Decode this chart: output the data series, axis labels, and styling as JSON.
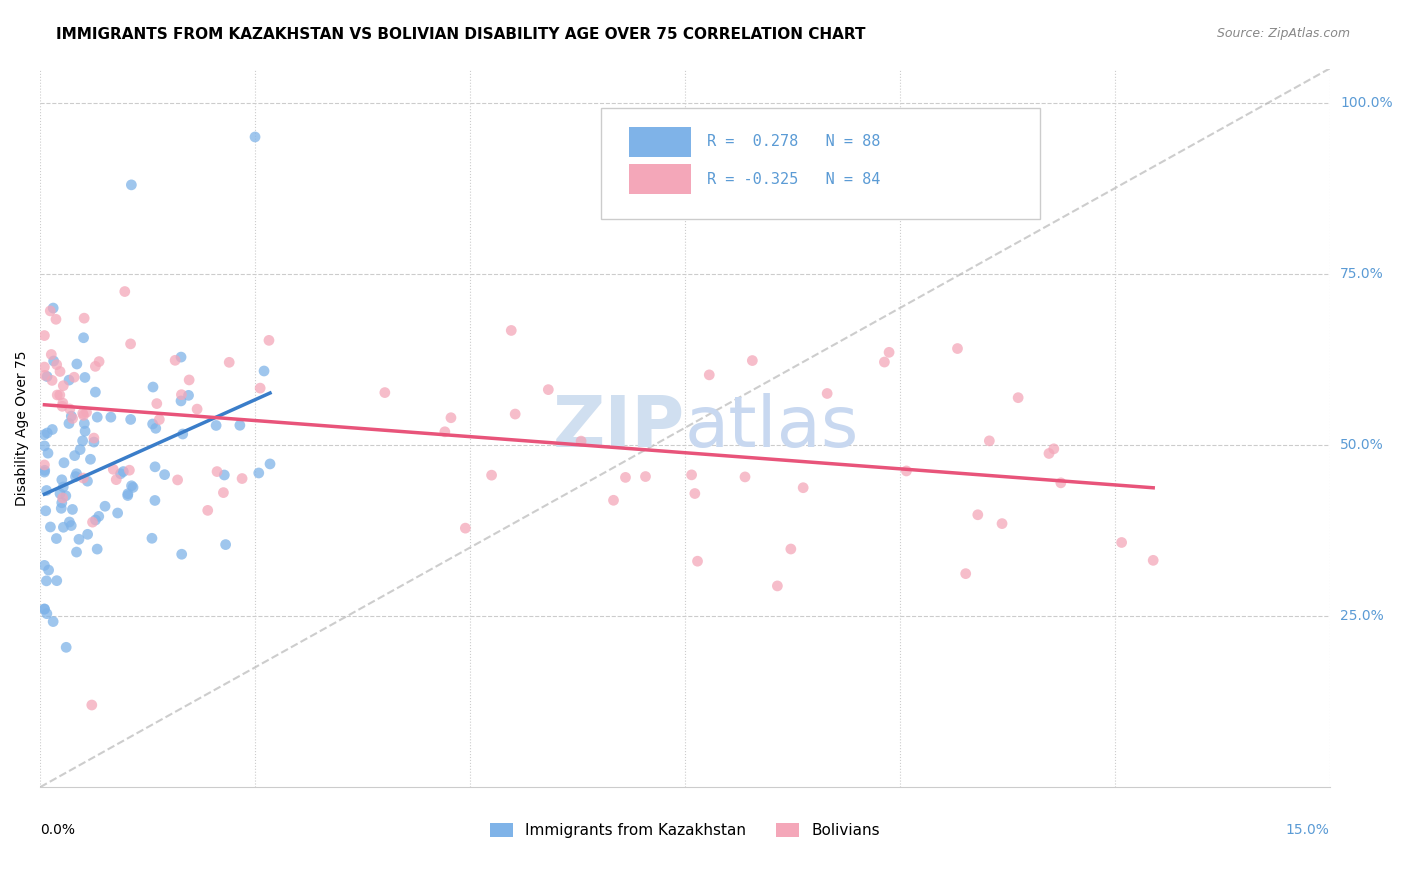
{
  "title": "IMMIGRANTS FROM KAZAKHSTAN VS BOLIVIAN DISABILITY AGE OVER 75 CORRELATION CHART",
  "source": "Source: ZipAtlas.com",
  "ylabel": "Disability Age Over 75",
  "legend_labels": [
    "Immigrants from Kazakhstan",
    "Bolivians"
  ],
  "r_kaz": 0.278,
  "n_kaz": 88,
  "r_bol": -0.325,
  "n_bol": 84,
  "color_kaz": "#7fb3e8",
  "color_bol": "#f4a7b9",
  "color_kaz_line": "#3a7dc9",
  "color_bol_line": "#e8547a",
  "color_diag": "#b8b8b8",
  "watermark_color": "#d0dff0",
  "title_fontsize": 11,
  "source_fontsize": 9,
  "axis_label_fontsize": 10,
  "tick_fontsize": 10,
  "legend_fontsize": 11,
  "x_min": 0.0,
  "x_max": 0.15,
  "y_min": 0.0,
  "y_max": 1.05
}
